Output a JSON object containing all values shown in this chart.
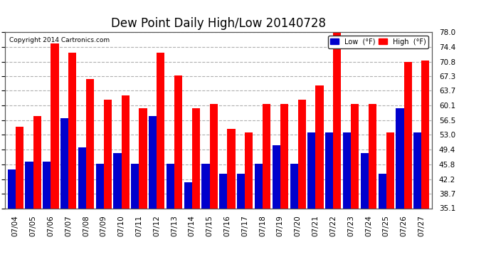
{
  "title": "Dew Point Daily High/Low 20140728",
  "copyright": "Copyright 2014 Cartronics.com",
  "dates": [
    "07/04",
    "07/05",
    "07/06",
    "07/07",
    "07/08",
    "07/09",
    "07/10",
    "07/11",
    "07/12",
    "07/13",
    "07/14",
    "07/15",
    "07/16",
    "07/17",
    "07/18",
    "07/19",
    "07/20",
    "07/21",
    "07/22",
    "07/23",
    "07/24",
    "07/25",
    "07/26",
    "07/27"
  ],
  "high_values": [
    55.0,
    57.5,
    75.2,
    73.0,
    66.5,
    61.5,
    62.5,
    59.5,
    73.0,
    67.5,
    59.5,
    60.5,
    54.5,
    53.5,
    60.5,
    60.5,
    61.5,
    65.0,
    79.0,
    60.5,
    60.5,
    53.5,
    70.8,
    71.0
  ],
  "low_values": [
    44.5,
    46.5,
    46.5,
    57.0,
    50.0,
    46.0,
    48.5,
    46.0,
    57.5,
    46.0,
    41.5,
    46.0,
    43.5,
    43.5,
    46.0,
    50.5,
    46.0,
    53.5,
    53.5,
    53.5,
    48.5,
    43.5,
    59.5,
    53.5
  ],
  "high_color": "#ff0000",
  "low_color": "#0000cc",
  "bg_color": "#ffffff",
  "grid_color": "#b0b0b0",
  "ylim_min": 35.1,
  "ylim_max": 78.0,
  "yticks": [
    35.1,
    38.7,
    42.2,
    45.8,
    49.4,
    53.0,
    56.5,
    60.1,
    63.7,
    67.3,
    70.8,
    74.4,
    78.0
  ],
  "bar_width": 0.45,
  "title_fontsize": 12,
  "tick_fontsize": 7.5,
  "legend_low_label": "Low  (°F)",
  "legend_high_label": "High  (°F)"
}
